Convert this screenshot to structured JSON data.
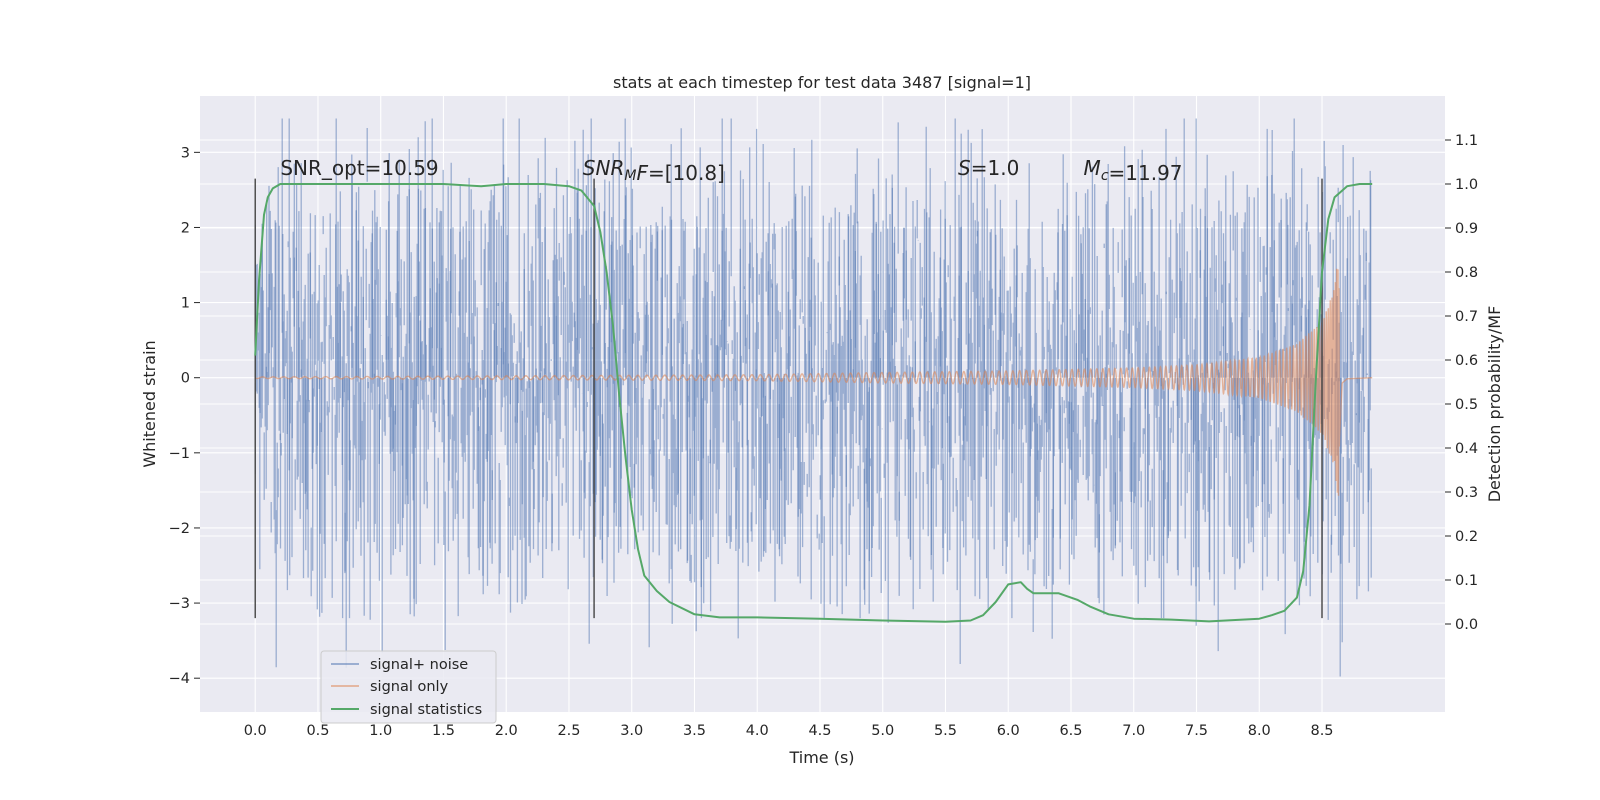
{
  "chart_data": {
    "type": "line",
    "title": "stats at each timestep for test data 3487 [signal=1]",
    "xlabel": "Time (s)",
    "ylabel_left": "Whitened strain",
    "ylabel_right": "Detection probability/MF",
    "xlim": [
      -0.44,
      9.48
    ],
    "ylim_left": [
      -4.45,
      3.75
    ],
    "ylim_right": [
      -0.2,
      1.2
    ],
    "x_ticks": [
      0.0,
      0.5,
      1.0,
      1.5,
      2.0,
      2.5,
      3.0,
      3.5,
      4.0,
      4.5,
      5.0,
      5.5,
      6.0,
      6.5,
      7.0,
      7.5,
      8.0,
      8.5
    ],
    "x_tick_labels": [
      "0.0",
      "0.5",
      "1.0",
      "1.5",
      "2.0",
      "2.5",
      "3.0",
      "3.5",
      "4.0",
      "4.5",
      "5.0",
      "5.5",
      "6.0",
      "6.5",
      "7.0",
      "7.5",
      "8.0",
      "8.5"
    ],
    "y_left_ticks": [
      -4,
      -3,
      -2,
      -1,
      0,
      1,
      2,
      3
    ],
    "y_left_tick_labels": [
      "−4",
      "−3",
      "−2",
      "−1",
      "0",
      "1",
      "2",
      "3"
    ],
    "y_right_ticks": [
      0.0,
      0.1,
      0.2,
      0.3,
      0.4,
      0.5,
      0.6,
      0.7,
      0.8,
      0.9,
      1.0,
      1.1
    ],
    "y_right_tick_labels": [
      "0.0",
      "0.1",
      "0.2",
      "0.3",
      "0.4",
      "0.5",
      "0.6",
      "0.7",
      "0.8",
      "0.9",
      "1.0",
      "1.1"
    ],
    "grid": true,
    "legend_position": "lower-left",
    "legend": [
      "signal+ noise",
      "signal only",
      "signal statistics"
    ],
    "colors": {
      "noise": "#4c72b0",
      "signal": "#dd8452",
      "statistics": "#55a868",
      "vlines": "#444444",
      "background": "#eaeaf2"
    },
    "series": [
      {
        "name": "signal+ noise",
        "axis": "left",
        "style": "noise-band",
        "x_range": [
          0.0,
          8.9
        ],
        "typical_amplitude": 1.5,
        "max_value": 3.45,
        "min_value": -4.0
      },
      {
        "name": "signal only",
        "axis": "left",
        "style": "chirp",
        "x_range": [
          0.0,
          8.9
        ],
        "merger_time": 8.63,
        "peak_amplitude": 1.65,
        "envelope": [
          [
            0.0,
            0.01
          ],
          [
            4.0,
            0.04
          ],
          [
            5.0,
            0.07
          ],
          [
            6.0,
            0.09
          ],
          [
            7.0,
            0.13
          ],
          [
            7.5,
            0.17
          ],
          [
            8.0,
            0.27
          ],
          [
            8.3,
            0.45
          ],
          [
            8.5,
            0.75
          ],
          [
            8.6,
            1.2
          ],
          [
            8.63,
            1.65
          ],
          [
            8.66,
            0.1
          ],
          [
            8.7,
            0.02
          ],
          [
            8.9,
            0.0
          ]
        ]
      },
      {
        "name": "signal statistics",
        "axis": "right",
        "style": "line",
        "x": [
          0.0,
          0.03,
          0.07,
          0.1,
          0.14,
          0.2,
          0.3,
          0.5,
          1.0,
          1.5,
          1.8,
          2.0,
          2.3,
          2.5,
          2.6,
          2.7,
          2.75,
          2.8,
          2.85,
          2.9,
          2.95,
          3.0,
          3.05,
          3.1,
          3.2,
          3.3,
          3.5,
          3.7,
          4.0,
          4.5,
          5.0,
          5.5,
          5.7,
          5.8,
          5.9,
          6.0,
          6.1,
          6.15,
          6.2,
          6.3,
          6.4,
          6.55,
          6.65,
          6.8,
          7.0,
          7.3,
          7.6,
          8.0,
          8.1,
          8.2,
          8.3,
          8.35,
          8.4,
          8.45,
          8.5,
          8.55,
          8.6,
          8.7,
          8.8,
          8.9
        ],
        "y": [
          0.61,
          0.78,
          0.93,
          0.97,
          0.99,
          1.0,
          1.0,
          1.0,
          1.0,
          1.0,
          0.995,
          1.0,
          1.0,
          0.995,
          0.985,
          0.95,
          0.89,
          0.8,
          0.68,
          0.52,
          0.38,
          0.26,
          0.17,
          0.11,
          0.075,
          0.05,
          0.022,
          0.015,
          0.015,
          0.012,
          0.008,
          0.005,
          0.008,
          0.02,
          0.05,
          0.09,
          0.095,
          0.08,
          0.07,
          0.07,
          0.07,
          0.055,
          0.04,
          0.022,
          0.012,
          0.01,
          0.006,
          0.012,
          0.02,
          0.03,
          0.06,
          0.12,
          0.27,
          0.55,
          0.8,
          0.92,
          0.97,
          0.995,
          1.0,
          1.0
        ]
      }
    ],
    "vertical_lines": [
      {
        "x": 0.0,
        "y_range": [
          -3.2,
          2.65
        ]
      },
      {
        "x": 2.7,
        "y_range": [
          -3.2,
          2.65
        ]
      },
      {
        "x": 8.5,
        "y_range": [
          -3.2,
          2.65
        ]
      }
    ],
    "annotations": [
      {
        "x": 0.2,
        "y": 2.7,
        "parts": [
          {
            "t": "SNR_opt=10.59"
          }
        ]
      },
      {
        "x": 2.61,
        "y": 2.7,
        "parts": [
          {
            "t": "SNR",
            "i": true
          },
          {
            "t": "M",
            "i": true,
            "sub": true
          },
          {
            "t": "F",
            "i": true
          },
          {
            "t": "=[10.8]"
          }
        ]
      },
      {
        "x": 5.6,
        "y": 2.7,
        "parts": [
          {
            "t": "S",
            "i": true
          },
          {
            "t": "=1.0"
          }
        ]
      },
      {
        "x": 6.6,
        "y": 2.7,
        "parts": [
          {
            "t": "M",
            "i": true
          },
          {
            "t": "c",
            "i": true,
            "sub": true
          },
          {
            "t": "=11.97"
          }
        ]
      }
    ]
  }
}
